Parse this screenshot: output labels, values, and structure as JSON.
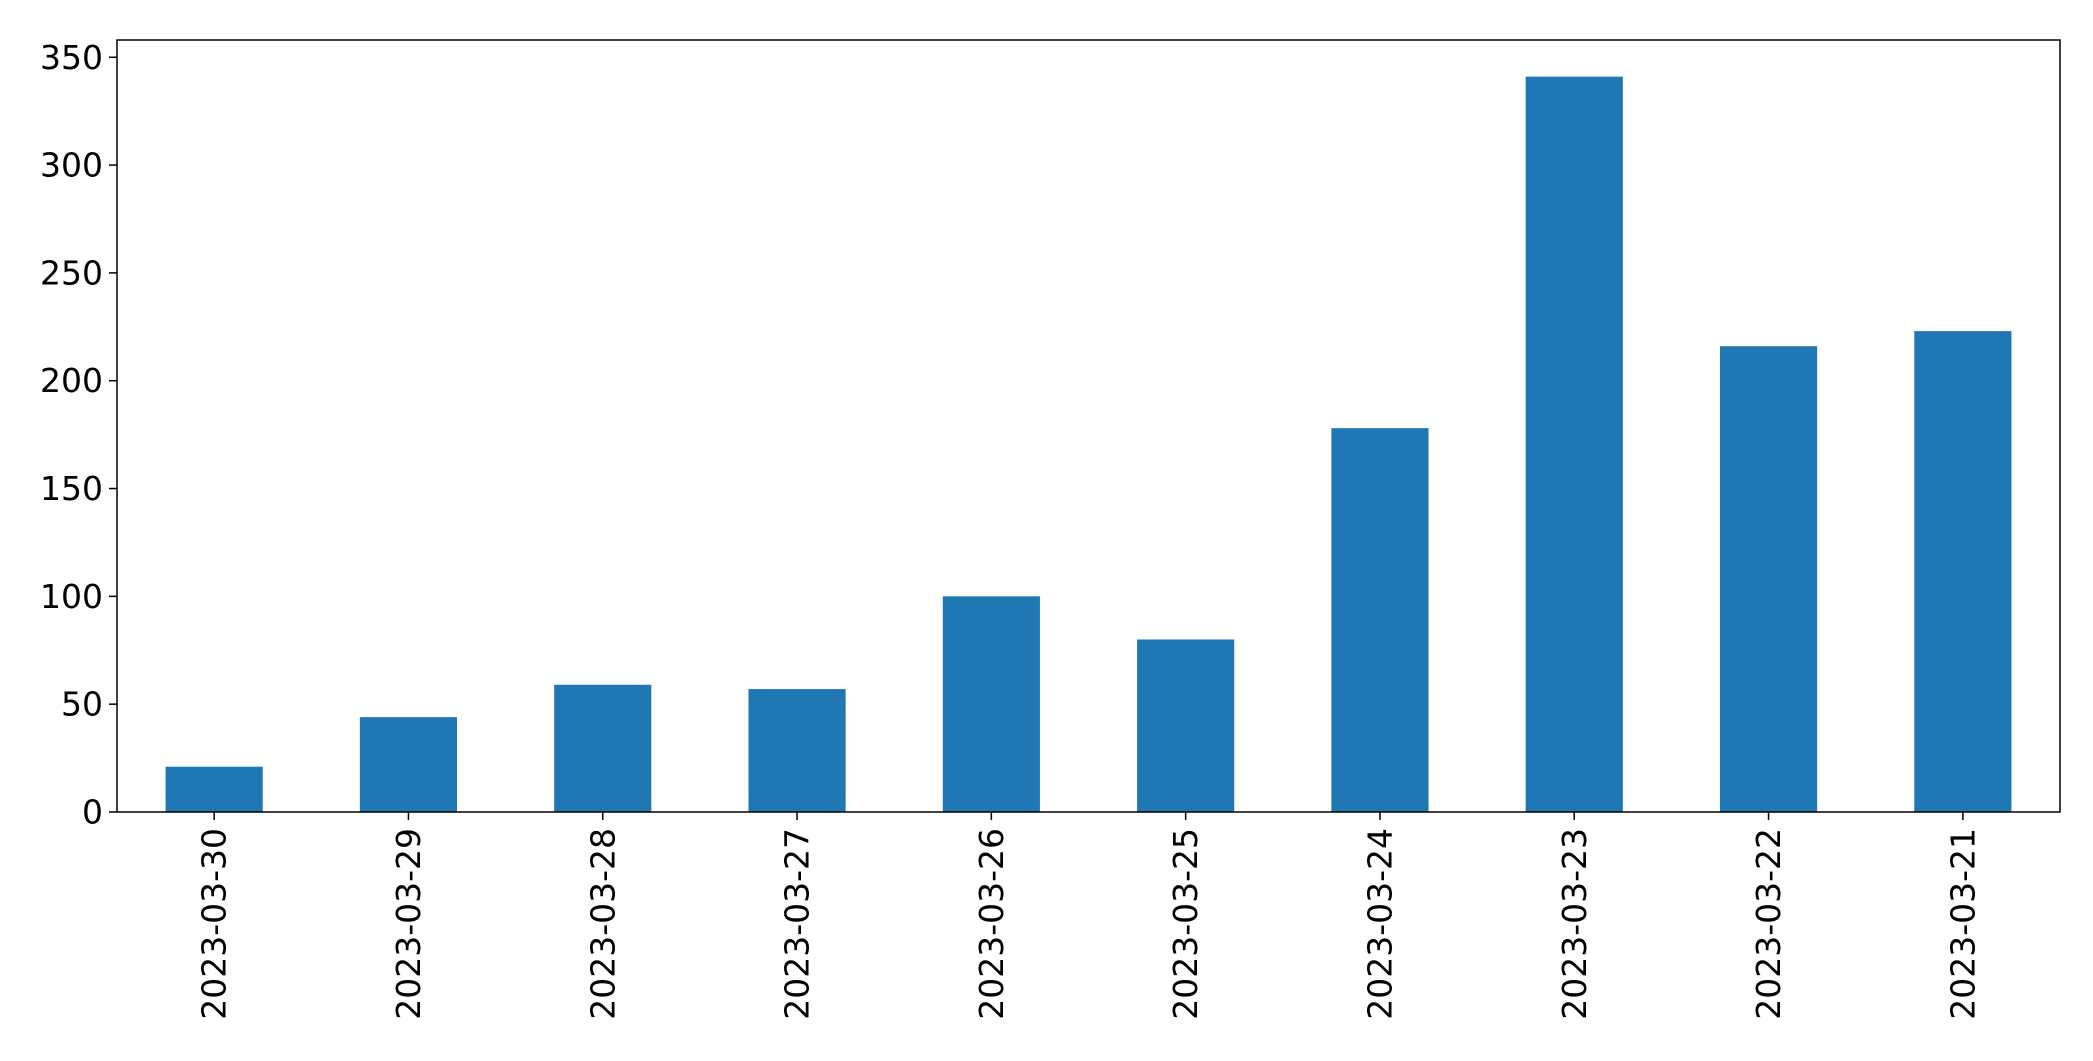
{
  "chart_data": {
    "type": "bar",
    "title": "",
    "xlabel": "",
    "ylabel": "",
    "categories": [
      "2023-03-30",
      "2023-03-29",
      "2023-03-28",
      "2023-03-27",
      "2023-03-26",
      "2023-03-25",
      "2023-03-24",
      "2023-03-23",
      "2023-03-22",
      "2023-03-21"
    ],
    "values": [
      21,
      44,
      59,
      57,
      100,
      80,
      178,
      341,
      216,
      223
    ],
    "ylim": [
      0,
      358
    ],
    "yticks": [
      0,
      50,
      100,
      150,
      200,
      250,
      300,
      350
    ],
    "ytick_labels": [
      "0",
      "50",
      "100",
      "150",
      "200",
      "250",
      "300",
      "350"
    ],
    "xtick_rotation": "vertical",
    "grid": false,
    "legend": "none",
    "bar_color": "#1f77b4"
  }
}
